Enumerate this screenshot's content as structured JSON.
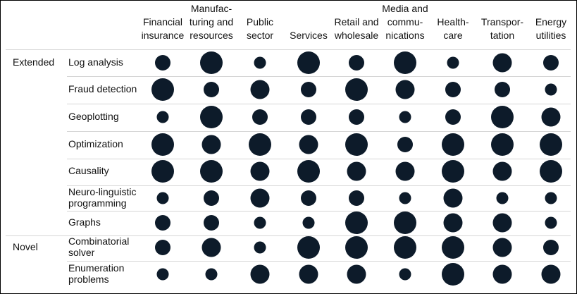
{
  "chart_data": {
    "type": "bubble-matrix",
    "color": "#0d1b2a",
    "row_groups": [
      "Extended",
      null,
      null,
      null,
      null,
      null,
      null,
      "Novel",
      null
    ],
    "categories": [
      "Log analysis",
      "Fraud detection",
      "Geoplotting",
      "Optimization",
      "Causality",
      "Neuro-linguistic\nprogramming",
      "Graphs",
      "Combinatorial\nsolver",
      "Enumeration\nproblems"
    ],
    "series": [
      {
        "name": "Financial\ninsurance",
        "values": [
          2,
          4,
          1,
          4,
          4,
          1,
          2,
          2,
          1
        ]
      },
      {
        "name": "Manufac-\nturing and\nresources",
        "values": [
          4,
          2,
          4,
          3,
          4,
          2,
          2,
          3,
          1
        ]
      },
      {
        "name": "Public\nsector",
        "values": [
          1,
          3,
          2,
          4,
          3,
          3,
          1,
          1,
          3
        ]
      },
      {
        "name": "Services",
        "values": [
          4,
          2,
          2,
          3,
          4,
          2,
          1,
          4,
          3
        ]
      },
      {
        "name": "Retail and\nwholesale",
        "values": [
          2,
          4,
          2,
          4,
          3,
          2,
          4,
          4,
          3
        ]
      },
      {
        "name": "Media and\ncommu-\nnications",
        "values": [
          4,
          3,
          1,
          2,
          3,
          1,
          4,
          4,
          1
        ]
      },
      {
        "name": "Health-\ncare",
        "values": [
          1,
          2,
          2,
          4,
          4,
          3,
          3,
          4,
          4
        ]
      },
      {
        "name": "Transpor-\ntation",
        "values": [
          3,
          2,
          4,
          4,
          3,
          1,
          3,
          3,
          3
        ]
      },
      {
        "name": "Energy\nutilities",
        "values": [
          2,
          1,
          3,
          4,
          4,
          1,
          1,
          2,
          3
        ]
      }
    ]
  }
}
